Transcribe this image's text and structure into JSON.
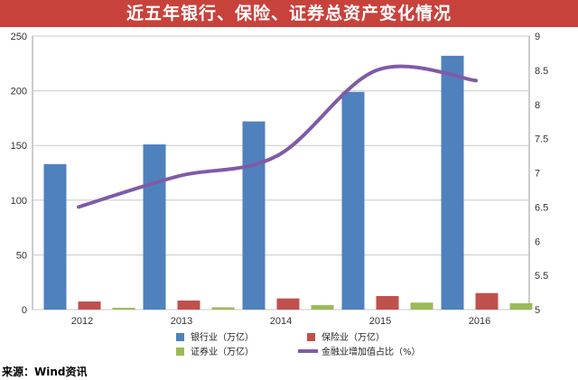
{
  "title": "近五年银行、保险、证券总资产变化情况",
  "source": "来源：Wind资讯",
  "colors": {
    "banner": "#c8423c",
    "bank": "#4f81bd",
    "insurance": "#c0504d",
    "securities": "#9bbb59",
    "finance_ratio": "#7f5ba7"
  },
  "chart_data": {
    "type": "bar",
    "categories": [
      "2012",
      "2013",
      "2014",
      "2015",
      "2016"
    ],
    "series": [
      {
        "name": "银行业（万亿）",
        "type": "bar",
        "axis": "left",
        "values": [
          133,
          151,
          172,
          199,
          232
        ]
      },
      {
        "name": "保险业（万亿）",
        "type": "bar",
        "axis": "left",
        "values": [
          7.4,
          8.3,
          10.2,
          12.4,
          15.1
        ]
      },
      {
        "name": "证券业（万亿）",
        "type": "bar",
        "axis": "left",
        "values": [
          1.7,
          2.1,
          4.1,
          6.4,
          5.8
        ]
      },
      {
        "name": "金融业增加值占比（%）",
        "type": "line",
        "axis": "right",
        "values": [
          6.5,
          6.95,
          7.25,
          8.5,
          8.35
        ]
      }
    ],
    "y_left": {
      "min": 0,
      "max": 250,
      "ticks": [
        "0",
        "50",
        "100",
        "150",
        "200",
        "250"
      ]
    },
    "y_right": {
      "min": 5,
      "max": 9,
      "ticks": [
        "5",
        "5.5",
        "6",
        "6.5",
        "7",
        "7.5",
        "8",
        "8.5",
        "9"
      ]
    },
    "grid": true,
    "legend_position": "bottom"
  }
}
